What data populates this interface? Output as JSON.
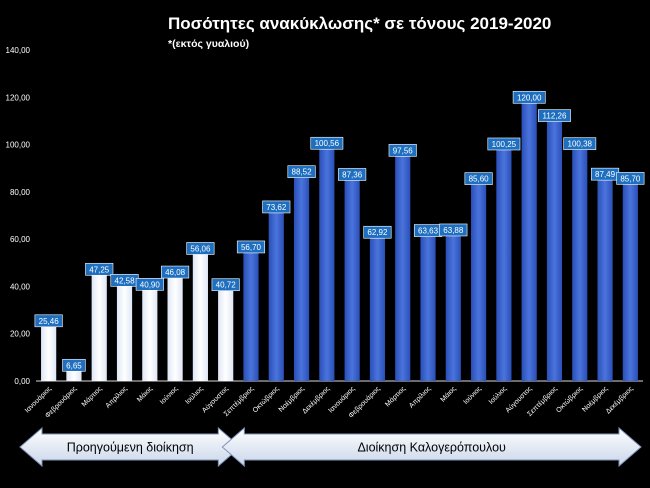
{
  "chart_data": {
    "type": "bar",
    "title": "Ποσότητες ανακύκλωσης* σε τόνους 2019-2020",
    "subtitle": "*(εκτός γυαλιού)",
    "xlabel": "",
    "ylabel": "",
    "ylim": [
      0,
      140
    ],
    "yticks": [
      "0,00",
      "20,00",
      "40,00",
      "60,00",
      "80,00",
      "100,00",
      "120,00",
      "140,00"
    ],
    "grid": false,
    "categories": [
      "Ιανουάριος",
      "Φεβρουάριος",
      "Μάρτιος",
      "Απρίλιος",
      "Μάιος",
      "Ιούνιος",
      "Ιούλιος",
      "Αύγουστος",
      "Σεπτέμβριος",
      "Οκτώβριος",
      "Νοέμβριος",
      "Δεκέμβριος",
      "Ιανουάριος",
      "Φεβρουάριος",
      "Μάρτιος",
      "Απρίλιος",
      "Μάιος",
      "Ιούνιος",
      "Ιούλιος",
      "Αύγουστος",
      "Σεπτέμβριος",
      "Οκτώβριος",
      "Νοέμβριος",
      "Δεκέμβριος"
    ],
    "values": [
      25.46,
      6.65,
      47.25,
      42.58,
      40.9,
      46.08,
      56.06,
      40.72,
      56.7,
      73.62,
      88.52,
      100.56,
      87.36,
      62.92,
      97.56,
      63.63,
      63.88,
      85.6,
      100.25,
      120.0,
      112.26,
      100.38,
      87.49,
      85.7
    ],
    "data_labels": [
      "25,46",
      "6,65",
      "47,25",
      "42,58",
      "40,90",
      "46,08",
      "56,06",
      "40,72",
      "56,70",
      "73,62",
      "88,52",
      "100,56",
      "87,36",
      "62,92",
      "97,56",
      "63,63",
      "63,88",
      "85,60",
      "100,25",
      "120,00",
      "112,26",
      "100,38",
      "87,49",
      "85,70"
    ],
    "groups": [
      {
        "label": "Προηγούμενη διοίκηση",
        "count": 8,
        "color": "#eef3fb"
      },
      {
        "label": "Διοίκηση Καλογερόπουλου",
        "count": 16,
        "color": "#3b63c9"
      }
    ],
    "label_box_color": "#1f6fc0"
  }
}
